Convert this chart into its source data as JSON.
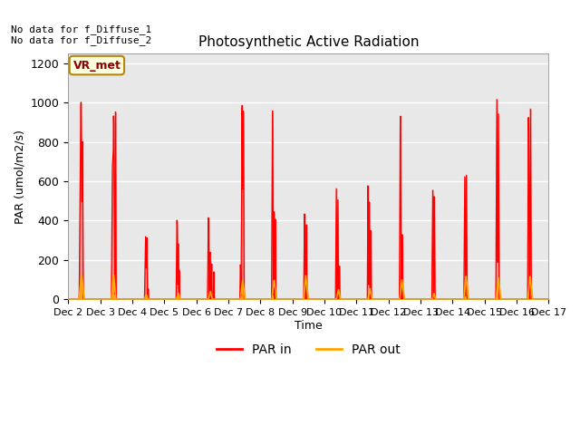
{
  "title": "Photosynthetic Active Radiation",
  "ylabel": "PAR (umol/m2/s)",
  "xlabel": "Time",
  "text_top_left": "No data for f_Diffuse_1\nNo data for f_Diffuse_2",
  "legend_box_label": "VR_met",
  "legend_labels": [
    "PAR in",
    "PAR out"
  ],
  "ylim": [
    0,
    1250
  ],
  "yticks": [
    0,
    200,
    400,
    600,
    800,
    1000,
    1200
  ],
  "xtick_labels": [
    "Dec 2",
    "Dec 3",
    "Dec 4",
    "Dec 5",
    "Dec 6",
    "Dec 7",
    "Dec 8",
    "Dec 9",
    "Dec 10",
    "Dec 11",
    "Dec 12",
    "Dec 13",
    "Dec 14",
    "Dec 15",
    "Dec 16",
    "Dec 17"
  ],
  "background_color": "#e8e8e8",
  "grid_color": "white",
  "par_in_color": "red",
  "par_out_color": "orange"
}
